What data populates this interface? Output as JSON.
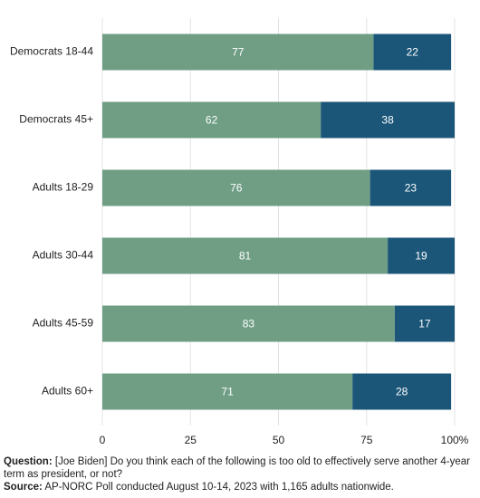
{
  "chart_data": {
    "type": "stacked-barh",
    "categories": [
      "Democrats 18-44",
      "Democrats 45+",
      "Adults 18-29",
      "Adults 30-44",
      "Adults 45-59",
      "Adults 60+"
    ],
    "series": [
      {
        "color": "#6f9e85",
        "values": [
          77,
          62,
          76,
          81,
          83,
          71
        ]
      },
      {
        "color": "#1b5679",
        "values": [
          22,
          38,
          23,
          19,
          17,
          28
        ]
      }
    ],
    "xlim": [
      0,
      100
    ],
    "xticks": [
      0,
      25,
      50,
      75,
      {
        "value": 100,
        "label": "100%"
      }
    ],
    "grid": true,
    "question_label": "Question:",
    "question": "[Joe Biden] Do you think each of the following is too old to effectively serve another 4-year term as president, or not?",
    "source_label": "Source:",
    "source": "AP-NORC Poll conducted August 10-14, 2023 with 1,165 adults nationwide."
  }
}
